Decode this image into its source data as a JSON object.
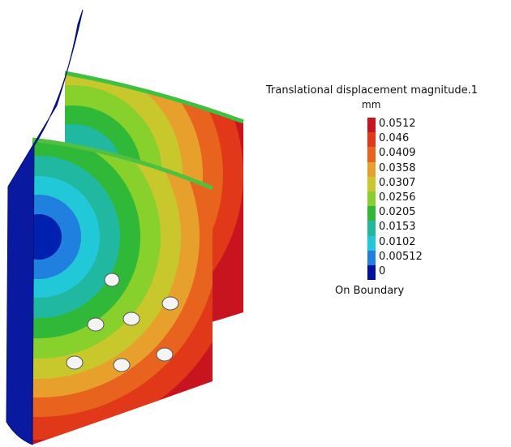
{
  "legend": {
    "title": "Translational displacement magnitude.1",
    "unit": "mm",
    "levels": [
      {
        "label": "0.0512",
        "color": "#c8141e"
      },
      {
        "label": "0.046",
        "color": "#e03818"
      },
      {
        "label": "0.0409",
        "color": "#e8641e"
      },
      {
        "label": "0.0358",
        "color": "#e8a02c"
      },
      {
        "label": "0.0307",
        "color": "#c8c82c"
      },
      {
        "label": "0.0256",
        "color": "#88d02c"
      },
      {
        "label": "0.0205",
        "color": "#30b838"
      },
      {
        "label": "0.0153",
        "color": "#20b8a0"
      },
      {
        "label": "0.0102",
        "color": "#20c8d8"
      },
      {
        "label": "0.00512",
        "color": "#2080e0"
      },
      {
        "label": "0",
        "color": "#0010a0"
      }
    ],
    "footer": "On Boundary"
  }
}
